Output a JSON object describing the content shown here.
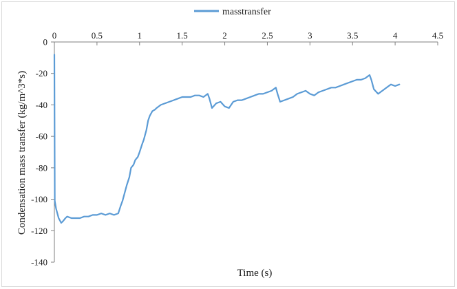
{
  "chart_data": {
    "type": "line",
    "title": "",
    "xlabel": "Time (s)",
    "ylabel": "Condensation mass transfer (kg/m^3*s)",
    "xlim": [
      0,
      4.5
    ],
    "ylim": [
      -140,
      0
    ],
    "xticks": [
      0,
      0.5,
      1,
      1.5,
      2,
      2.5,
      3,
      3.5,
      4,
      4.5
    ],
    "xtick_labels": [
      "0",
      "0.5",
      "1",
      "1.5",
      "2",
      "2.5",
      "3",
      "3.5",
      "4",
      "4.5"
    ],
    "yticks": [
      0,
      -20,
      -40,
      -60,
      -80,
      -100,
      -120,
      -140
    ],
    "ytick_labels": [
      "0",
      "-20",
      "-40",
      "-60",
      "-80",
      "-100",
      "-120",
      "-140"
    ],
    "grid": false,
    "legend_position": "top-center",
    "series": [
      {
        "name": "masstransfer",
        "color": "#5b9bd5",
        "x": [
          0,
          0.005,
          0.02,
          0.05,
          0.08,
          0.1,
          0.13,
          0.15,
          0.2,
          0.25,
          0.3,
          0.35,
          0.4,
          0.45,
          0.5,
          0.55,
          0.6,
          0.65,
          0.7,
          0.75,
          0.78,
          0.8,
          0.82,
          0.85,
          0.88,
          0.9,
          0.93,
          0.95,
          0.98,
          1.0,
          1.03,
          1.05,
          1.08,
          1.1,
          1.12,
          1.15,
          1.18,
          1.2,
          1.25,
          1.3,
          1.35,
          1.4,
          1.45,
          1.5,
          1.55,
          1.6,
          1.65,
          1.7,
          1.75,
          1.8,
          1.82,
          1.85,
          1.9,
          1.95,
          2.0,
          2.05,
          2.1,
          2.15,
          2.2,
          2.25,
          2.3,
          2.35,
          2.4,
          2.45,
          2.5,
          2.55,
          2.6,
          2.62,
          2.65,
          2.7,
          2.75,
          2.8,
          2.85,
          2.9,
          2.95,
          3.0,
          3.05,
          3.1,
          3.15,
          3.2,
          3.25,
          3.3,
          3.35,
          3.4,
          3.45,
          3.5,
          3.55,
          3.6,
          3.65,
          3.7,
          3.72,
          3.75,
          3.8,
          3.85,
          3.9,
          3.95,
          4.0,
          4.05
        ],
        "y": [
          -8,
          -101,
          -106,
          -112,
          -115,
          -114,
          -112,
          -111,
          -112,
          -112,
          -112,
          -111,
          -111,
          -110,
          -110,
          -109,
          -110,
          -109,
          -110,
          -109,
          -104,
          -101,
          -97,
          -91,
          -86,
          -80,
          -78,
          -75,
          -73,
          -70,
          -65,
          -62,
          -56,
          -50,
          -47,
          -44,
          -43,
          -42,
          -40,
          -39,
          -38,
          -37,
          -36,
          -35,
          -35,
          -35,
          -34,
          -34,
          -35,
          -33,
          -36,
          -42,
          -39,
          -38,
          -41,
          -42,
          -38,
          -37,
          -37,
          -36,
          -35,
          -34,
          -33,
          -33,
          -32,
          -31,
          -29,
          -33,
          -38,
          -37,
          -36,
          -35,
          -33,
          -32,
          -31,
          -33,
          -34,
          -32,
          -31,
          -30,
          -29,
          -29,
          -28,
          -27,
          -26,
          -25,
          -24,
          -24,
          -23,
          -21,
          -24,
          -30,
          -33,
          -31,
          -29,
          -27,
          -28,
          -27
        ]
      }
    ]
  }
}
